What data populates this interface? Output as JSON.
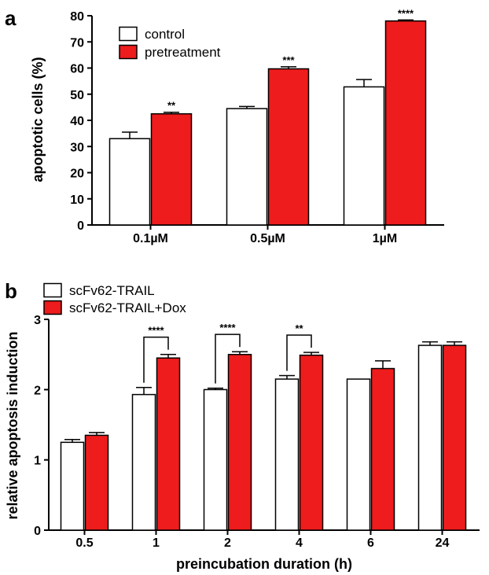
{
  "panels": {
    "a": {
      "letter": "a"
    },
    "b": {
      "letter": "b"
    }
  },
  "colors": {
    "control": "#ffffff",
    "treatment": "#ee1c1c",
    "stroke": "#000000"
  },
  "chart_data": [
    {
      "panel": "a",
      "type": "bar",
      "title": "",
      "xlabel": "",
      "ylabel": "apoptotic cells (%)",
      "ylim": [
        0,
        80
      ],
      "yticks": [
        0,
        10,
        20,
        30,
        40,
        50,
        60,
        70,
        80
      ],
      "categories": [
        "0.1µM",
        "0.5µM",
        "1µM"
      ],
      "series": [
        {
          "name": "control",
          "color": "#ffffff",
          "values": [
            33,
            44.5,
            52.8
          ],
          "errors": [
            2.5,
            0.8,
            2.8
          ]
        },
        {
          "name": "pretreatment",
          "color": "#ee1c1c",
          "values": [
            42.5,
            59.7,
            78
          ],
          "errors": [
            0.6,
            0.8,
            0.4
          ]
        }
      ],
      "significance": [
        "**",
        "***",
        "****"
      ],
      "legend": "top-left",
      "grid": false
    },
    {
      "panel": "b",
      "type": "bar",
      "title": "",
      "xlabel": "preincubation duration (h)",
      "ylabel": "relative apoptosis induction",
      "ylim": [
        0,
        3
      ],
      "yticks": [
        0,
        1,
        2,
        3
      ],
      "categories": [
        "0.5",
        "1",
        "2",
        "4",
        "6",
        "24"
      ],
      "series": [
        {
          "name": "scFv62-TRAIL",
          "color": "#ffffff",
          "values": [
            1.25,
            1.93,
            2.0,
            2.15,
            2.15,
            2.63
          ],
          "errors": [
            0.04,
            0.1,
            0.02,
            0.05,
            0,
            0.05
          ]
        },
        {
          "name": "scFv62-TRAIL+Dox",
          "color": "#ee1c1c",
          "values": [
            1.35,
            2.45,
            2.5,
            2.49,
            2.3,
            2.63
          ],
          "errors": [
            0.04,
            0.05,
            0.04,
            0.04,
            0.11,
            0.05
          ]
        }
      ],
      "significance": [
        "",
        "****",
        "****",
        "**",
        "",
        ""
      ],
      "legend": "top-left",
      "grid": false
    }
  ]
}
